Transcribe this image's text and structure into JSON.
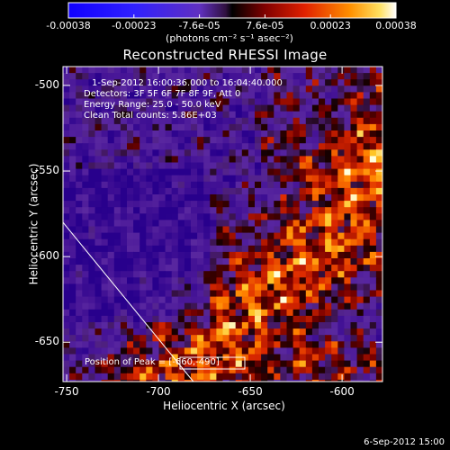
{
  "colorbar": {
    "ticks": [
      "-0.00038",
      "-0.00023",
      "-7.6e-05",
      "7.6e-05",
      "0.00023",
      "0.00038"
    ],
    "units": "(photons cm⁻² s⁻¹ asec⁻²)",
    "colors": [
      "#0000ff",
      "#8040ff",
      "#000000",
      "#d02000",
      "#ff9000",
      "#ffffff"
    ]
  },
  "chart_data": {
    "type": "heatmap",
    "title": "Reconstructed RHESSI Image",
    "xlabel": "Heliocentric X (arcsec)",
    "ylabel": "Heliocentric Y (arcsec)",
    "xlim": [
      -752,
      -578
    ],
    "ylim": [
      -673,
      -489
    ],
    "xticks": [
      -750,
      -700,
      -650,
      -600
    ],
    "yticks": [
      -500,
      -550,
      -600,
      -650
    ],
    "xtick_labels": [
      "-750",
      "-700",
      "-650",
      "-600"
    ],
    "ytick_labels": [
      "-500",
      "-550",
      "-600",
      "-650"
    ],
    "limb_line": {
      "x": [
        -752,
        -681
      ],
      "y": [
        -580,
        -673
      ]
    },
    "peak": {
      "x": -660,
      "y": -490
    },
    "colormap": "rhessi-bipolar"
  },
  "annotations": [
    "1-Sep-2012 16:00:36.000 to 16:04:40.000",
    "Detectors: 3F 5F 6F 7F 8F 9F, Att 0",
    "Energy Range: 25.0 - 50.0 keV",
    "Clean    Total counts: 5.86E+03"
  ],
  "peak_label": "Position of Peak = [-660,-490]",
  "footer": "6-Sep-2012 15:00"
}
